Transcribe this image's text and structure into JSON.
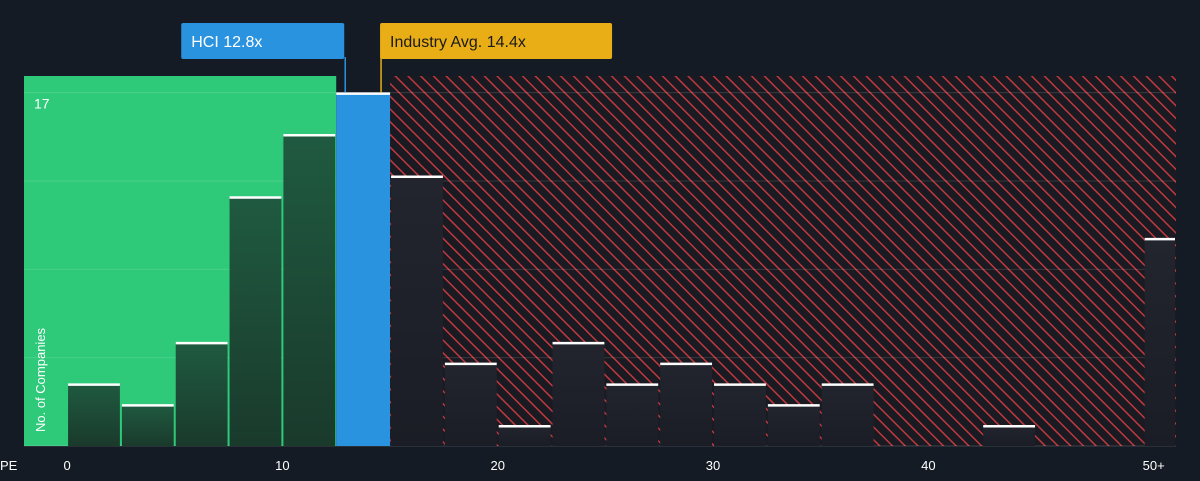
{
  "chart_data": {
    "type": "bar",
    "title": "",
    "xlabel": "PE",
    "ylabel": "No. of Companies",
    "x_ticks": [
      "0",
      "10",
      "20",
      "30",
      "40",
      "50+"
    ],
    "x_tick_values": [
      0,
      10,
      20,
      30,
      40,
      50
    ],
    "xlim": [
      -2.0,
      51.5
    ],
    "ylim": [
      0,
      17.8
    ],
    "y_max_label": "17",
    "y_max_value": 17,
    "grid": true,
    "bin_width": 2.5,
    "bins": [
      {
        "x0": 0.0,
        "x1": 2.5,
        "value": 3
      },
      {
        "x0": 2.5,
        "x1": 5.0,
        "value": 2
      },
      {
        "x0": 5.0,
        "x1": 7.5,
        "value": 5
      },
      {
        "x0": 7.5,
        "x1": 10.0,
        "value": 12
      },
      {
        "x0": 10.0,
        "x1": 12.5,
        "value": 15
      },
      {
        "x0": 12.5,
        "x1": 15.0,
        "value": 17
      },
      {
        "x0": 15.0,
        "x1": 17.5,
        "value": 13
      },
      {
        "x0": 17.5,
        "x1": 20.0,
        "value": 4
      },
      {
        "x0": 20.0,
        "x1": 22.5,
        "value": 1
      },
      {
        "x0": 22.5,
        "x1": 25.0,
        "value": 5
      },
      {
        "x0": 25.0,
        "x1": 27.5,
        "value": 3
      },
      {
        "x0": 27.5,
        "x1": 30.0,
        "value": 4
      },
      {
        "x0": 30.0,
        "x1": 32.5,
        "value": 3
      },
      {
        "x0": 32.5,
        "x1": 35.0,
        "value": 2
      },
      {
        "x0": 35.0,
        "x1": 37.5,
        "value": 3
      },
      {
        "x0": 37.5,
        "x1": 40.0,
        "value": 0
      },
      {
        "x0": 40.0,
        "x1": 42.5,
        "value": 0
      },
      {
        "x0": 42.5,
        "x1": 45.0,
        "value": 1
      },
      {
        "x0": 45.0,
        "x1": 47.5,
        "value": 0
      },
      {
        "x0": 47.5,
        "x1": 50.0,
        "value": 0
      },
      {
        "x0": 50.0,
        "x1": 51.5,
        "value": 10
      }
    ],
    "company": {
      "label": "HCI 12.8x",
      "pe": 12.8
    },
    "industry": {
      "label": "Industry Avg. 14.4x",
      "pe": 14.4
    },
    "colors": {
      "background": "#151b24",
      "below_zone": "#2fc97a",
      "below_bar": "#1e4d3a",
      "company_bar": "#2a93e0",
      "company_tag": "#2a93e0",
      "industry_tag": "#e9ae16",
      "hatch": "#c0393f",
      "above_bar": "#1a1c24",
      "bar_top": "#ffffff",
      "axis_text": "#ffffff"
    }
  }
}
